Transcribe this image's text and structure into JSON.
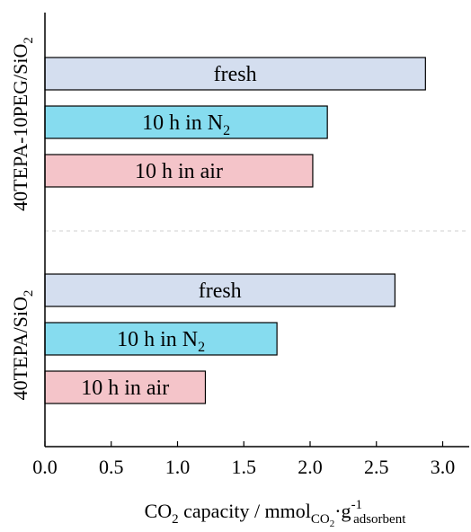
{
  "chart_data": {
    "type": "bar",
    "orientation": "horizontal",
    "xlim": [
      0,
      3.2
    ],
    "x_ticks": [
      "0.0",
      "0.5",
      "1.0",
      "1.5",
      "2.0",
      "2.5",
      "3.0"
    ],
    "x_tick_values": [
      0,
      0.5,
      1.0,
      1.5,
      2.0,
      2.5,
      3.0
    ],
    "xlabel": {
      "prefix": "CO",
      "prefix_sub": "2",
      "middle": " capacity / mmol",
      "middle_sub": "CO",
      "middle_sub_sub": "2",
      "dot": "·g",
      "sup": "-1",
      "sub": "adsorbent"
    },
    "grid": false,
    "separator": "dashed",
    "groups": [
      {
        "name": "40TEPA-10PEG/SiO",
        "name_sub": "2",
        "bars": [
          {
            "label": "fresh",
            "label_sub": "",
            "value": 2.87,
            "color": "#d4deef"
          },
          {
            "label": "10 h in N",
            "label_sub": "2",
            "value": 2.13,
            "color": "#86dcef"
          },
          {
            "label": "10 h in air",
            "label_sub": "",
            "value": 2.02,
            "color": "#f4c4c9"
          }
        ]
      },
      {
        "name": "40TEPA/SiO",
        "name_sub": "2",
        "bars": [
          {
            "label": "fresh",
            "label_sub": "",
            "value": 2.64,
            "color": "#d4deef"
          },
          {
            "label": "10 h in N",
            "label_sub": "2",
            "value": 1.75,
            "color": "#86dcef"
          },
          {
            "label": "10 h in air",
            "label_sub": "",
            "value": 1.21,
            "color": "#f4c4c9"
          }
        ]
      }
    ]
  }
}
